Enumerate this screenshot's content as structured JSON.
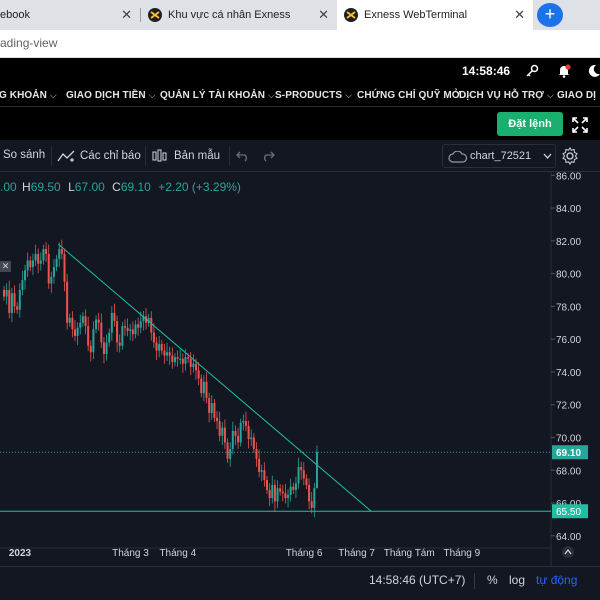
{
  "browser": {
    "tabs": [
      {
        "title": "ebook"
      },
      {
        "title": "Khu vực cá nhân Exness"
      },
      {
        "title": "Exness WebTerminal"
      }
    ],
    "new_tab": "+",
    "url": "ading-view"
  },
  "header": {
    "time": "14:58:46",
    "menu": [
      "G KHOẢN",
      "GIAO DỊCH TIỀN",
      "QUẢN LÝ TÀI KHOẢN",
      "S-PRODUCTS",
      "CHỨNG CHỈ QUỸ MỞ",
      "DỊCH VỤ HỖ TRỢ",
      "GIAO DỊ"
    ],
    "order_button": "Đặt lệnh"
  },
  "toolbar": {
    "compare": "So sánh",
    "indicators": "Các chỉ báo",
    "templates": "Bản mẫu",
    "chart_name": "chart_72521"
  },
  "legend": {
    "o_value": ".00",
    "h_label": "H",
    "h_value": "69.50",
    "l_label": "L",
    "l_value": "67.00",
    "c_label": "C",
    "c_value": "69.10",
    "change": "+2.20 (+3.29%)"
  },
  "chart_data": {
    "type": "candlestick",
    "y_ticks": [
      64,
      66,
      68,
      70,
      72,
      74,
      76,
      78,
      80,
      82,
      84,
      86
    ],
    "ylim": [
      63.5,
      86.2
    ],
    "last_price": "69.10",
    "horizontal_line": "65.50",
    "x_labels": [
      "2023",
      "Tháng 3",
      "Tháng 4",
      "Tháng 6",
      "Tháng 7",
      "Tháng Tám",
      "Tháng 9"
    ],
    "x_label_positions": [
      0,
      42,
      60,
      108,
      128,
      148,
      168
    ],
    "closes": [
      78.6,
      79.0,
      77.6,
      78.8,
      78.0,
      77.8,
      79.0,
      79.6,
      80.2,
      80.8,
      80.4,
      80.8,
      81.2,
      80.6,
      80.8,
      81.5,
      81.2,
      79.4,
      79.8,
      80.4,
      80.9,
      81.5,
      81.2,
      79.5,
      77.0,
      77.3,
      76.6,
      76.2,
      76.7,
      77.0,
      77.4,
      76.8,
      75.6,
      75.2,
      76.6,
      77.2,
      77.0,
      75.8,
      75.1,
      75.8,
      76.4,
      77.6,
      77.1,
      75.8,
      75.6,
      76.8,
      76.7,
      76.5,
      76.6,
      76.3,
      76.9,
      76.7,
      77.1,
      77.4,
      77.0,
      77.3,
      76.4,
      75.8,
      75.3,
      75.7,
      75.3,
      75.0,
      75.2,
      75.0,
      74.6,
      74.9,
      74.8,
      74.8,
      74.5,
      74.9,
      74.8,
      74.3,
      74.5,
      74.1,
      73.6,
      72.7,
      73.4,
      72.4,
      71.5,
      72.1,
      71.2,
      71.0,
      70.1,
      70.6,
      69.7,
      68.7,
      69.3,
      70.4,
      70.1,
      69.7,
      70.9,
      71.0,
      70.7,
      69.9,
      70.0,
      69.3,
      68.7,
      67.9,
      68.0,
      67.4,
      66.8,
      66.3,
      67.1,
      66.1,
      66.9,
      66.7,
      66.6,
      66.3,
      66.5,
      67.0,
      66.8,
      67.2,
      68.2,
      68.0,
      67.5,
      67.1,
      66.1,
      65.7,
      66.9,
      69.1
    ],
    "trendline": {
      "start": {
        "bar": 21,
        "price": 81.8
      },
      "end": {
        "bar": 140,
        "price": 65.5
      }
    }
  },
  "timebar": {
    "time": "14:58:46 (UTC+7)",
    "percent": "%",
    "log": "log",
    "auto": "tự động"
  },
  "colors": {
    "up": "#26a69a",
    "down": "#ef5350",
    "accent": "#2962ff",
    "order": "#1aae6f",
    "trend": "#1fbfa2"
  }
}
